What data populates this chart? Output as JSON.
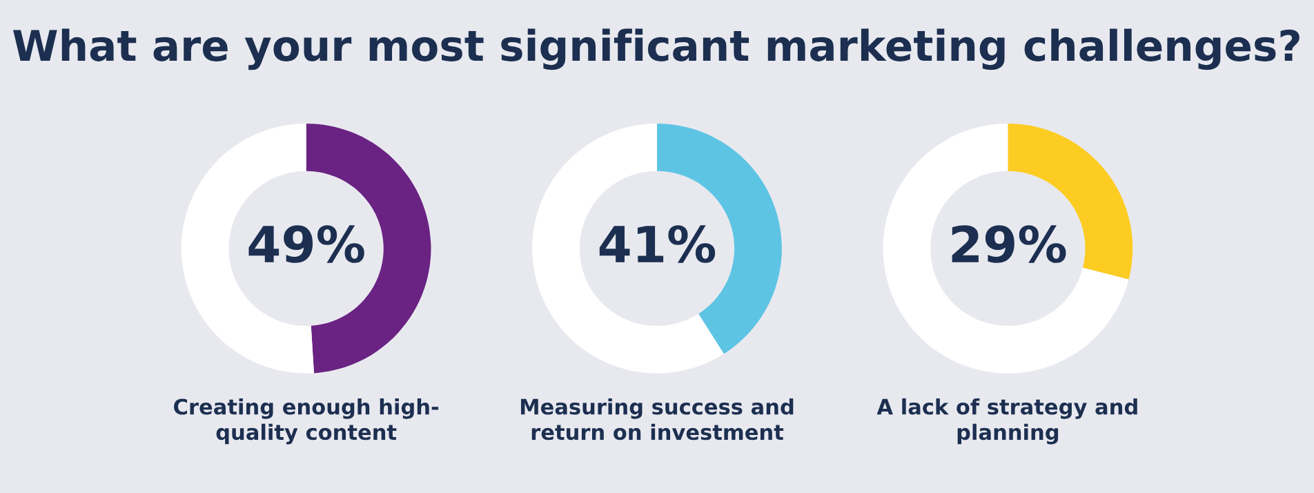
{
  "chart_data": [
    {
      "type": "donut",
      "title": "What are your most significant marketing challenges?",
      "xlabel": "Creating enough high-\nquality content",
      "categories": [
        null,
        null
      ],
      "values": [
        49,
        51
      ],
      "colors": [
        "#6a2383",
        "#ffffff"
      ],
      "value_labels": [
        "49%",
        null
      ]
    },
    {
      "type": "donut",
      "xlabel": "Measuring success and\nreturn on investment",
      "categories": [
        null,
        null
      ],
      "values": [
        41,
        59
      ],
      "colors": [
        "#5ec4e4",
        "#ffffff"
      ],
      "value_labels": [
        "41%",
        null
      ]
    },
    {
      "type": "donut",
      "xlabel": "A lack of strategy and\nplanning",
      "categories": [
        null,
        null
      ],
      "values": [
        29,
        71
      ],
      "colors": [
        "#fccc22",
        "#ffffff"
      ],
      "value_labels": [
        "29%",
        null
      ]
    }
  ]
}
